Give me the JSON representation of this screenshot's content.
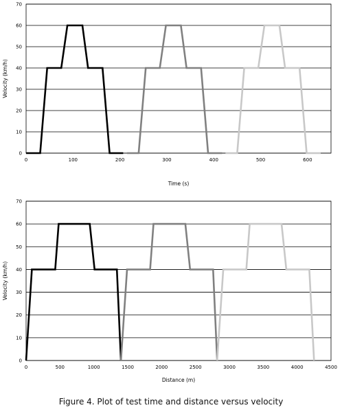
{
  "caption": "Figure 4. Plot of test time and distance versus velocity",
  "chart_data": [
    {
      "type": "line",
      "xlabel": "Time (s)",
      "ylabel": "Velocity (km/h)",
      "xlim": [
        0,
        650
      ],
      "ylim": [
        0,
        70
      ],
      "xticks": [
        0,
        100,
        200,
        300,
        400,
        500,
        600
      ],
      "yticks": [
        0,
        10,
        20,
        30,
        40,
        50,
        60,
        70
      ],
      "grid": "horizontal",
      "series": [
        {
          "color": "#000000",
          "x": [
            0,
            30,
            45,
            75,
            88,
            120,
            132,
            163,
            178,
            207
          ],
          "y": [
            0,
            0,
            40,
            40,
            60,
            60,
            40,
            40,
            0,
            0
          ]
        },
        {
          "color": "#808080",
          "x": [
            215,
            240,
            255,
            285,
            298,
            330,
            342,
            373,
            388,
            418
          ],
          "y": [
            0,
            0,
            40,
            40,
            60,
            60,
            40,
            40,
            0,
            0
          ]
        },
        {
          "color": "#c8c8c8",
          "x": [
            425,
            450,
            465,
            495,
            508,
            540,
            552,
            583,
            598,
            628
          ],
          "y": [
            0,
            0,
            40,
            40,
            60,
            60,
            40,
            40,
            0,
            0
          ]
        }
      ]
    },
    {
      "type": "line",
      "xlabel": "Distance (m)",
      "ylabel": "Velocity (km/h)",
      "xlim": [
        0,
        4500
      ],
      "ylim": [
        0,
        70
      ],
      "xticks": [
        0,
        500,
        1000,
        1500,
        2000,
        2500,
        3000,
        3500,
        4000,
        4500
      ],
      "yticks": [
        0,
        10,
        20,
        30,
        40,
        50,
        60,
        70
      ],
      "grid": "horizontal",
      "series": [
        {
          "color": "#000000",
          "x": [
            0,
            85,
            430,
            480,
            940,
            1010,
            1340,
            1400
          ],
          "y": [
            0,
            40,
            40,
            60,
            60,
            40,
            40,
            0
          ]
        },
        {
          "color": "#808080",
          "x": [
            1400,
            1490,
            1830,
            1880,
            2350,
            2420,
            2760,
            2820
          ],
          "y": [
            0,
            40,
            40,
            60,
            60,
            40,
            40,
            0
          ]
        },
        {
          "color": "#c8c8c8",
          "x": [
            2820,
            2910,
            3250,
            3300,
            3770,
            3840,
            4180,
            4250
          ],
          "y": [
            0,
            40,
            40,
            60,
            60,
            40,
            40,
            0
          ]
        }
      ]
    }
  ]
}
